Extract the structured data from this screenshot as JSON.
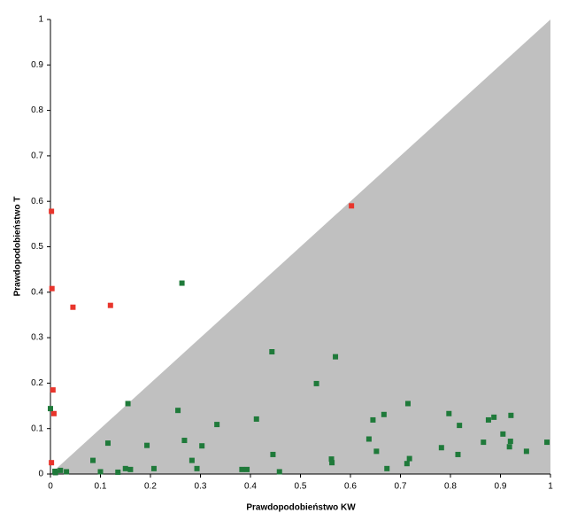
{
  "chart_data": {
    "type": "scatter",
    "x_label": "Prawdopodobieństwo KW",
    "y_label": "Prawdopodobieństwo T",
    "xlim": [
      0,
      1
    ],
    "ylim": [
      0,
      1
    ],
    "xticks": [
      0,
      0.1,
      0.2,
      0.3,
      0.4,
      0.5,
      0.6,
      0.7,
      0.8,
      0.9,
      1
    ],
    "yticks": [
      0,
      0.1,
      0.2,
      0.3,
      0.4,
      0.5,
      0.6,
      0.7,
      0.8,
      0.9,
      1
    ],
    "region_color": "#c0c0c0",
    "series": [
      {
        "color": "#e8352c",
        "x": [
          0.002,
          0.003,
          0.045,
          0.12,
          0.005,
          0.007,
          0.002,
          0.602
        ],
        "values": [
          0.578,
          0.408,
          0.367,
          0.371,
          0.185,
          0.133,
          0.025,
          0.59
        ]
      },
      {
        "color": "#1f7a3a",
        "x": [
          0,
          0.009,
          0.263,
          0.155,
          0.443,
          0.57,
          0.532,
          0.255,
          0.412,
          0.333,
          0.268,
          0.193,
          0.303,
          0.115,
          0.085,
          0.1,
          0.135,
          0.15,
          0.16,
          0.207,
          0.283,
          0.293,
          0.383,
          0.393,
          0.445,
          0.458,
          0.562,
          0.563,
          0.637,
          0.645,
          0.652,
          0.667,
          0.673,
          0.715,
          0.713,
          0.718,
          0.782,
          0.797,
          0.815,
          0.818,
          0.866,
          0.876,
          0.887,
          0.905,
          0.918,
          0.92,
          0.921,
          0.952,
          0.993,
          0.02,
          0.032,
          0.01
        ],
        "values": [
          0.144,
          0.006,
          0.42,
          0.155,
          0.269,
          0.258,
          0.199,
          0.14,
          0.121,
          0.109,
          0.074,
          0.063,
          0.062,
          0.068,
          0.03,
          0.005,
          0.004,
          0.012,
          0.01,
          0.012,
          0.03,
          0.012,
          0.01,
          0.01,
          0.043,
          0.005,
          0.033,
          0.025,
          0.077,
          0.119,
          0.05,
          0.131,
          0.012,
          0.155,
          0.023,
          0.034,
          0.058,
          0.133,
          0.043,
          0.107,
          0.07,
          0.119,
          0.125,
          0.088,
          0.06,
          0.072,
          0.129,
          0.05,
          0.07,
          0.008,
          0.005,
          0.003
        ]
      }
    ]
  }
}
